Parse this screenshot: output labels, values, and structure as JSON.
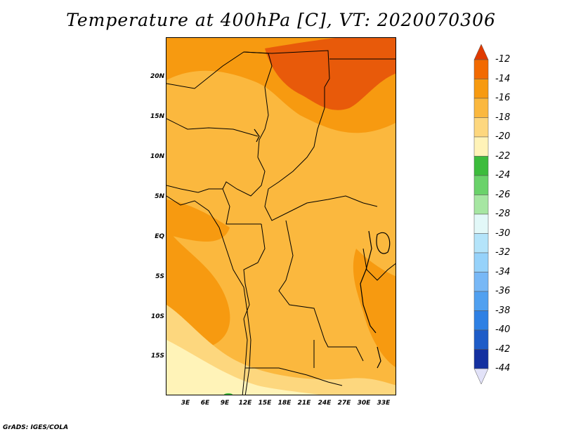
{
  "title": "Temperature at 400hPa [C], VT: 2020070306",
  "footer": "GrADS: IGES/COLA",
  "lat_labels": [
    "20N",
    "15N",
    "10N",
    "5N",
    "EQ",
    "5S",
    "10S",
    "15S"
  ],
  "lon_labels": [
    "3E",
    "6E",
    "9E",
    "12E",
    "15E",
    "18E",
    "21E",
    "24E",
    "27E",
    "30E",
    "33E"
  ],
  "colorbar": {
    "labels": [
      "-12",
      "-14",
      "-16",
      "-18",
      "-20",
      "-22",
      "-24",
      "-26",
      "-28",
      "-30",
      "-32",
      "-34",
      "-36",
      "-38",
      "-40",
      "-42",
      "-44"
    ],
    "colors": [
      "#e03a00",
      "#f26a00",
      "#f79a10",
      "#fbb83e",
      "#fdd77e",
      "#fff3b8",
      "#3cbc3c",
      "#6ad26a",
      "#a6e6a2",
      "#e2f8f8",
      "#b4e4fa",
      "#96d2fa",
      "#78b8f6",
      "#50a0f0",
      "#2e80e4",
      "#1e5cc8",
      "#1430a0",
      "#0a1464"
    ],
    "top_arrow_color": "#e03a00",
    "bottom_arrow_color": "#e2e2f8"
  },
  "field_colors": {
    "n12": "#e85a0a",
    "n14": "#f79a10",
    "n16": "#fbb83e",
    "n18": "#fdd77e",
    "n20": "#fff3b8",
    "n24": "#3cbc3c"
  }
}
